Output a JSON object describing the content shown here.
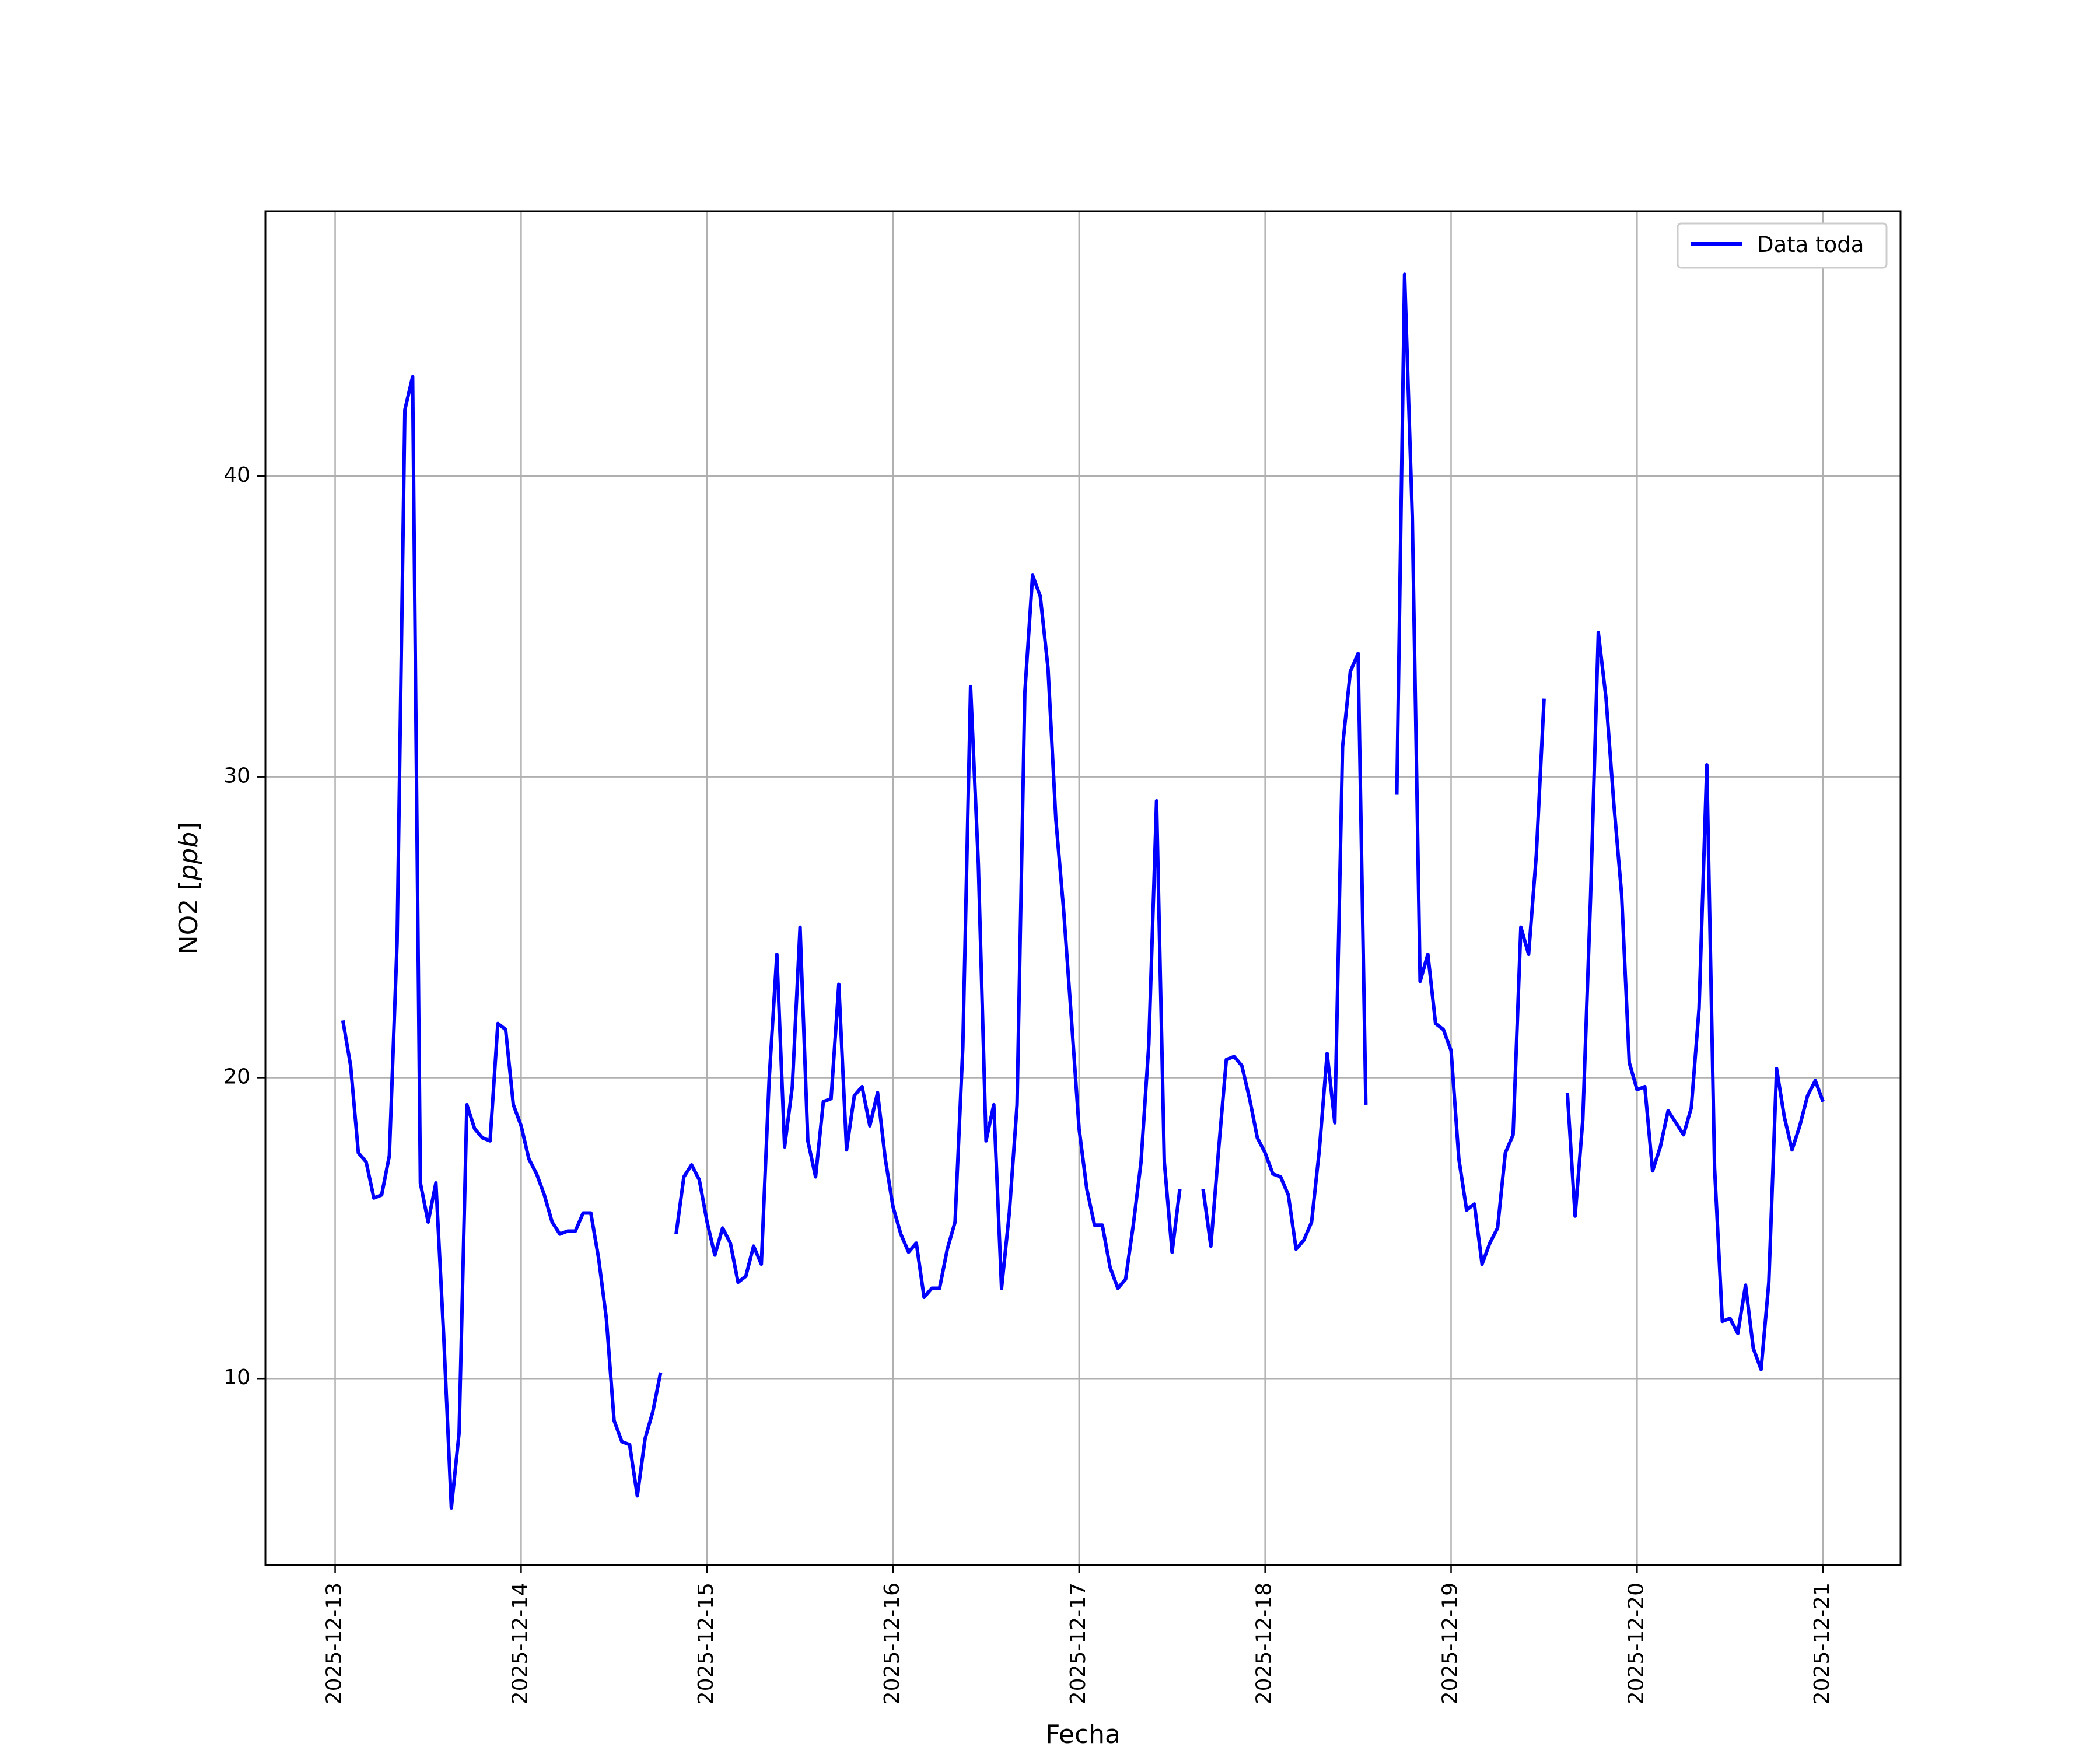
{
  "chart_data": {
    "type": "line",
    "xlabel": "Fecha",
    "ylabel": "NO2 [ppb]",
    "ylabel_parts": {
      "prefix": "NO2 [",
      "unit": "ppb",
      "suffix": "]"
    },
    "x_ticks": [
      "2025-12-13",
      "2025-12-14",
      "2025-12-15",
      "2025-12-16",
      "2025-12-17",
      "2025-12-18",
      "2025-12-19",
      "2025-12-20",
      "2025-12-21"
    ],
    "xlim": [
      "2025-12-12 15:00",
      "2025-12-21 10:00"
    ],
    "y_ticks": [
      10,
      20,
      30,
      40
    ],
    "ylim": [
      3.8,
      48.8
    ],
    "grid": true,
    "legend": {
      "placement": "top-right",
      "entries": [
        "Data toda"
      ]
    },
    "series": [
      {
        "name": "Data toda",
        "color": "#0000ff",
        "points": [
          [
            "2025-12-13 01:00",
            21.9
          ],
          [
            "2025-12-13 02:00",
            20.4
          ],
          [
            "2025-12-13 03:00",
            17.5
          ],
          [
            "2025-12-13 04:00",
            17.2
          ],
          [
            "2025-12-13 05:00",
            16.0
          ],
          [
            "2025-12-13 06:00",
            16.1
          ],
          [
            "2025-12-13 07:00",
            17.4
          ],
          [
            "2025-12-13 08:00",
            24.5
          ],
          [
            "2025-12-13 09:00",
            42.2
          ],
          [
            "2025-12-13 10:00",
            43.3
          ],
          [
            "2025-12-13 11:00",
            16.5
          ],
          [
            "2025-12-13 12:00",
            15.2
          ],
          [
            "2025-12-13 13:00",
            16.5
          ],
          [
            "2025-12-13 14:00",
            11.5
          ],
          [
            "2025-12-13 15:00",
            5.7
          ],
          [
            "2025-12-13 16:00",
            8.2
          ],
          [
            "2025-12-13 17:00",
            19.1
          ],
          [
            "2025-12-13 18:00",
            18.3
          ],
          [
            "2025-12-13 19:00",
            18.0
          ],
          [
            "2025-12-13 20:00",
            17.9
          ],
          [
            "2025-12-13 21:00",
            21.8
          ],
          [
            "2025-12-13 22:00",
            21.6
          ],
          [
            "2025-12-13 23:00",
            19.1
          ],
          [
            "2025-12-14 00:00",
            18.4
          ],
          [
            "2025-12-14 01:00",
            17.3
          ],
          [
            "2025-12-14 02:00",
            16.8
          ],
          [
            "2025-12-14 03:00",
            16.1
          ],
          [
            "2025-12-14 04:00",
            15.2
          ],
          [
            "2025-12-14 05:00",
            14.8
          ],
          [
            "2025-12-14 06:00",
            14.9
          ],
          [
            "2025-12-14 07:00",
            14.9
          ],
          [
            "2025-12-14 08:00",
            15.5
          ],
          [
            "2025-12-14 09:00",
            15.5
          ],
          [
            "2025-12-14 10:00",
            14.0
          ],
          [
            "2025-12-14 11:00",
            12.0
          ],
          [
            "2025-12-14 12:00",
            8.6
          ],
          [
            "2025-12-14 13:00",
            7.9
          ],
          [
            "2025-12-14 14:00",
            7.8
          ],
          [
            "2025-12-14 15:00",
            6.1
          ],
          [
            "2025-12-14 16:00",
            8.0
          ],
          [
            "2025-12-14 17:00",
            8.9
          ],
          [
            "2025-12-14 18:00",
            10.2
          ],
          null,
          [
            "2025-12-14 20:00",
            14.8
          ],
          [
            "2025-12-14 21:00",
            16.7
          ],
          [
            "2025-12-14 22:00",
            17.1
          ],
          [
            "2025-12-14 23:00",
            16.6
          ],
          [
            "2025-12-15 00:00",
            15.2
          ],
          [
            "2025-12-15 01:00",
            14.1
          ],
          [
            "2025-12-15 02:00",
            15.0
          ],
          [
            "2025-12-15 03:00",
            14.5
          ],
          [
            "2025-12-15 04:00",
            13.2
          ],
          [
            "2025-12-15 05:00",
            13.4
          ],
          [
            "2025-12-15 06:00",
            14.4
          ],
          [
            "2025-12-15 07:00",
            13.8
          ],
          [
            "2025-12-15 08:00",
            19.9
          ],
          [
            "2025-12-15 09:00",
            24.1
          ],
          [
            "2025-12-15 10:00",
            17.7
          ],
          [
            "2025-12-15 11:00",
            19.7
          ],
          [
            "2025-12-15 12:00",
            25.0
          ],
          [
            "2025-12-15 13:00",
            17.9
          ],
          [
            "2025-12-15 14:00",
            16.7
          ],
          [
            "2025-12-15 15:00",
            19.2
          ],
          [
            "2025-12-15 16:00",
            19.3
          ],
          [
            "2025-12-15 17:00",
            23.1
          ],
          [
            "2025-12-15 18:00",
            17.6
          ],
          [
            "2025-12-15 19:00",
            19.4
          ],
          [
            "2025-12-15 20:00",
            19.7
          ],
          [
            "2025-12-15 21:00",
            18.4
          ],
          [
            "2025-12-15 22:00",
            19.5
          ],
          [
            "2025-12-15 23:00",
            17.3
          ],
          [
            "2025-12-16 00:00",
            15.7
          ],
          [
            "2025-12-16 01:00",
            14.8
          ],
          [
            "2025-12-16 02:00",
            14.2
          ],
          [
            "2025-12-16 03:00",
            14.5
          ],
          [
            "2025-12-16 04:00",
            12.7
          ],
          [
            "2025-12-16 05:00",
            13.0
          ],
          [
            "2025-12-16 06:00",
            13.0
          ],
          [
            "2025-12-16 07:00",
            14.3
          ],
          [
            "2025-12-16 08:00",
            15.2
          ],
          [
            "2025-12-16 09:00",
            21.0
          ],
          [
            "2025-12-16 10:00",
            33.0
          ],
          [
            "2025-12-16 11:00",
            27.1
          ],
          [
            "2025-12-16 12:00",
            17.9
          ],
          [
            "2025-12-16 13:00",
            19.1
          ],
          [
            "2025-12-16 14:00",
            13.0
          ],
          [
            "2025-12-16 15:00",
            15.5
          ],
          [
            "2025-12-16 16:00",
            19.1
          ],
          [
            "2025-12-16 17:00",
            32.8
          ],
          [
            "2025-12-16 18:00",
            36.7
          ],
          [
            "2025-12-16 19:00",
            36.0
          ],
          [
            "2025-12-16 20:00",
            33.6
          ],
          [
            "2025-12-16 21:00",
            28.6
          ],
          [
            "2025-12-16 22:00",
            25.6
          ],
          [
            "2025-12-16 23:00",
            22.0
          ],
          [
            "2025-12-17 00:00",
            18.3
          ],
          [
            "2025-12-17 01:00",
            16.3
          ],
          [
            "2025-12-17 02:00",
            15.1
          ],
          [
            "2025-12-17 03:00",
            15.1
          ],
          [
            "2025-12-17 04:00",
            13.7
          ],
          [
            "2025-12-17 05:00",
            13.0
          ],
          [
            "2025-12-17 06:00",
            13.3
          ],
          [
            "2025-12-17 07:00",
            15.1
          ],
          [
            "2025-12-17 08:00",
            17.2
          ],
          [
            "2025-12-17 09:00",
            21.1
          ],
          [
            "2025-12-17 10:00",
            29.2
          ],
          [
            "2025-12-17 11:00",
            17.2
          ],
          [
            "2025-12-17 12:00",
            14.2
          ],
          [
            "2025-12-17 13:00",
            16.3
          ],
          null,
          [
            "2025-12-17 16:00",
            16.3
          ],
          [
            "2025-12-17 17:00",
            14.4
          ],
          [
            "2025-12-17 18:00",
            17.6
          ],
          [
            "2025-12-17 19:00",
            20.6
          ],
          [
            "2025-12-17 20:00",
            20.7
          ],
          [
            "2025-12-17 21:00",
            20.4
          ],
          [
            "2025-12-17 22:00",
            19.3
          ],
          [
            "2025-12-17 23:00",
            18.0
          ],
          [
            "2025-12-18 00:00",
            17.5
          ],
          [
            "2025-12-18 01:00",
            16.8
          ],
          [
            "2025-12-18 02:00",
            16.7
          ],
          [
            "2025-12-18 03:00",
            16.1
          ],
          [
            "2025-12-18 04:00",
            14.3
          ],
          [
            "2025-12-18 05:00",
            14.6
          ],
          [
            "2025-12-18 06:00",
            15.2
          ],
          [
            "2025-12-18 07:00",
            17.6
          ],
          [
            "2025-12-18 08:00",
            20.8
          ],
          [
            "2025-12-18 09:00",
            18.5
          ],
          [
            "2025-12-18 10:00",
            31.0
          ],
          [
            "2025-12-18 11:00",
            33.5
          ],
          [
            "2025-12-18 12:00",
            34.1
          ],
          [
            "2025-12-18 13:00",
            19.1
          ],
          null,
          [
            "2025-12-18 17:00",
            29.4
          ],
          [
            "2025-12-18 18:00",
            46.7
          ],
          [
            "2025-12-18 19:00",
            38.6
          ],
          [
            "2025-12-18 20:00",
            23.2
          ],
          [
            "2025-12-18 21:00",
            24.1
          ],
          [
            "2025-12-18 22:00",
            21.8
          ],
          [
            "2025-12-18 23:00",
            21.6
          ],
          [
            "2025-12-19 00:00",
            20.9
          ],
          [
            "2025-12-19 01:00",
            17.3
          ],
          [
            "2025-12-19 02:00",
            15.6
          ],
          [
            "2025-12-19 03:00",
            15.8
          ],
          [
            "2025-12-19 04:00",
            13.8
          ],
          [
            "2025-12-19 05:00",
            14.5
          ],
          [
            "2025-12-19 06:00",
            15.0
          ],
          [
            "2025-12-19 07:00",
            17.5
          ],
          [
            "2025-12-19 08:00",
            18.1
          ],
          [
            "2025-12-19 09:00",
            25.0
          ],
          [
            "2025-12-19 10:00",
            24.1
          ],
          [
            "2025-12-19 11:00",
            27.4
          ],
          [
            "2025-12-19 12:00",
            32.6
          ],
          null,
          [
            "2025-12-19 15:00",
            19.5
          ],
          [
            "2025-12-19 16:00",
            15.4
          ],
          [
            "2025-12-19 17:00",
            18.6
          ],
          [
            "2025-12-19 18:00",
            26.0
          ],
          [
            "2025-12-19 19:00",
            34.8
          ],
          [
            "2025-12-19 20:00",
            32.6
          ],
          [
            "2025-12-19 21:00",
            29.1
          ],
          [
            "2025-12-19 22:00",
            26.1
          ],
          [
            "2025-12-19 23:00",
            20.5
          ],
          [
            "2025-12-20 00:00",
            19.6
          ],
          [
            "2025-12-20 01:00",
            19.7
          ],
          [
            "2025-12-20 02:00",
            16.9
          ],
          [
            "2025-12-20 03:00",
            17.7
          ],
          [
            "2025-12-20 04:00",
            18.9
          ],
          [
            "2025-12-20 05:00",
            18.5
          ],
          [
            "2025-12-20 06:00",
            18.1
          ],
          [
            "2025-12-20 07:00",
            19.0
          ],
          [
            "2025-12-20 08:00",
            22.3
          ],
          [
            "2025-12-20 09:00",
            30.4
          ],
          [
            "2025-12-20 10:00",
            17.0
          ],
          [
            "2025-12-20 11:00",
            11.9
          ],
          [
            "2025-12-20 12:00",
            12.0
          ],
          [
            "2025-12-20 13:00",
            11.5
          ],
          [
            "2025-12-20 14:00",
            13.1
          ],
          [
            "2025-12-20 15:00",
            11.0
          ],
          [
            "2025-12-20 16:00",
            10.3
          ],
          [
            "2025-12-20 17:00",
            13.2
          ],
          [
            "2025-12-20 18:00",
            20.3
          ],
          [
            "2025-12-20 19:00",
            18.7
          ],
          [
            "2025-12-20 20:00",
            17.6
          ],
          [
            "2025-12-20 21:00",
            18.4
          ],
          [
            "2025-12-20 22:00",
            19.4
          ],
          [
            "2025-12-20 23:00",
            19.9
          ],
          [
            "2025-12-21 00:00",
            19.2
          ]
        ]
      }
    ]
  }
}
